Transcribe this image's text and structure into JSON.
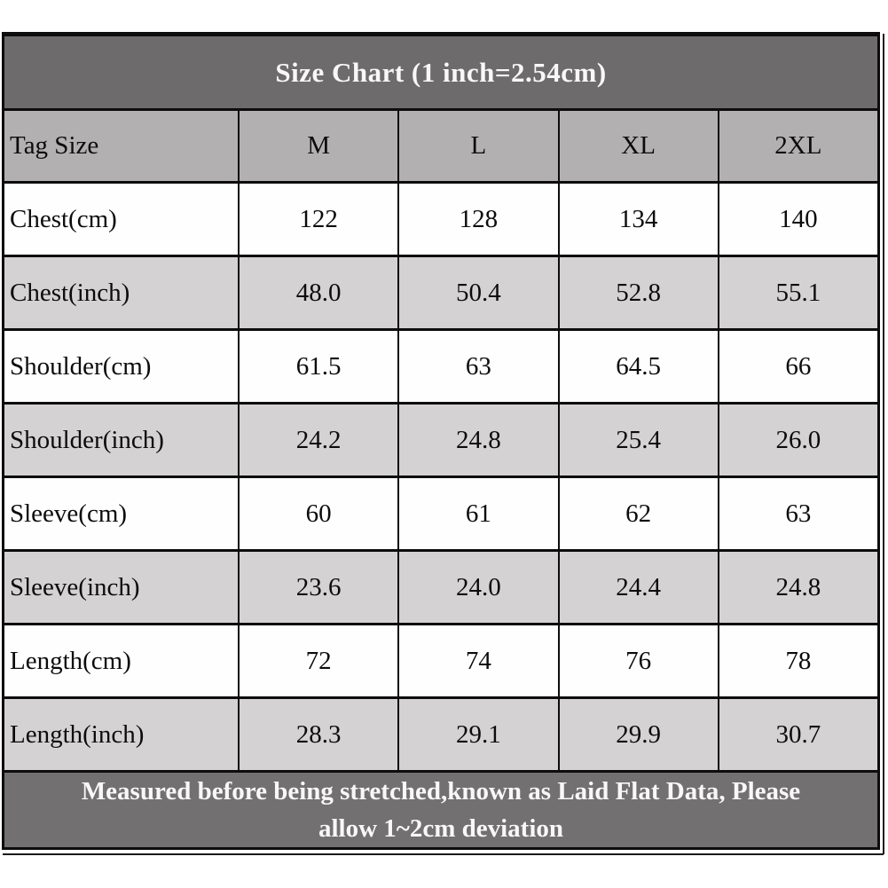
{
  "chart_data": {
    "type": "table",
    "title": "Size Chart (1 inch=2.54cm)",
    "columns": [
      "Tag Size",
      "M",
      "L",
      "XL",
      "2XL"
    ],
    "rows": [
      {
        "label": "Chest(cm)",
        "values": [
          "122",
          "128",
          "134",
          "140"
        ]
      },
      {
        "label": "Chest(inch)",
        "values": [
          "48.0",
          "50.4",
          "52.8",
          "55.1"
        ]
      },
      {
        "label": "Shoulder(cm)",
        "values": [
          "61.5",
          "63",
          "64.5",
          "66"
        ]
      },
      {
        "label": "Shoulder(inch)",
        "values": [
          "24.2",
          "24.8",
          "25.4",
          "26.0"
        ]
      },
      {
        "label": "Sleeve(cm)",
        "values": [
          "60",
          "61",
          "62",
          "63"
        ]
      },
      {
        "label": "Sleeve(inch)",
        "values": [
          "23.6",
          "24.0",
          "24.4",
          "24.8"
        ]
      },
      {
        "label": "Length(cm)",
        "values": [
          "72",
          "74",
          "76",
          "78"
        ]
      },
      {
        "label": "Length(inch)",
        "values": [
          "28.3",
          "29.1",
          "29.9",
          "30.7"
        ]
      }
    ],
    "footnote": "Measured before being stretched,known as Laid Flat Data, Please allow 1~2cm deviation"
  },
  "footer": {
    "line1": "Measured before being stretched,known as Laid Flat Data, Please",
    "line2": "allow 1~2cm deviation"
  },
  "colors": {
    "title_bg": "#6e6b6c",
    "footer_bg": "#727071",
    "header_bg": "#b3b0b1",
    "row_alt_bg": "#d4d2d3",
    "row_bg": "#fefefe",
    "border": "#0d0d0d",
    "light_text": "#f9f7f7",
    "dark_text": "#0c0c0c"
  }
}
